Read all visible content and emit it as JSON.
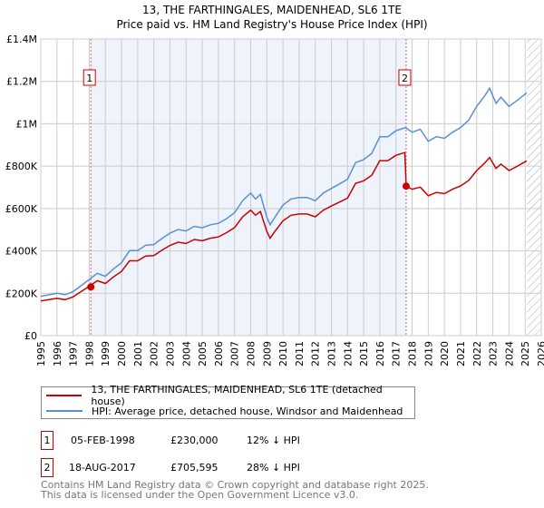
{
  "chart_data": {
    "type": "line",
    "title": "13, THE FARTHINGALES, MAIDENHEAD, SL6 1TE",
    "subtitle": "Price paid vs. HM Land Registry's House Price Index (HPI)",
    "xlabel": "",
    "ylabel": "",
    "xlim": [
      1995,
      2026
    ],
    "ylim": [
      0,
      1400000
    ],
    "x_ticks": [
      1995,
      1996,
      1997,
      1998,
      1999,
      2000,
      2001,
      2002,
      2003,
      2004,
      2005,
      2006,
      2007,
      2008,
      2009,
      2010,
      2011,
      2012,
      2013,
      2014,
      2015,
      2016,
      2017,
      2018,
      2019,
      2020,
      2021,
      2022,
      2023,
      2024,
      2025,
      2026
    ],
    "y_ticks": [
      {
        "v": 0,
        "label": "£0"
      },
      {
        "v": 200000,
        "label": "£200K"
      },
      {
        "v": 400000,
        "label": "£400K"
      },
      {
        "v": 600000,
        "label": "£600K"
      },
      {
        "v": 800000,
        "label": "£800K"
      },
      {
        "v": 1000000,
        "label": "£1M"
      },
      {
        "v": 1200000,
        "label": "£1.2M"
      },
      {
        "v": 1400000,
        "label": "£1.4M"
      }
    ],
    "grid": true,
    "shaded_period": [
      1998.1,
      2017.63
    ],
    "forecast_hatch_from": 2025.1,
    "series": [
      {
        "name": "13, THE FARTHINGALES, MAIDENHEAD, SL6 1TE (detached house)",
        "color": "#cc0000",
        "x": [
          1995,
          1996,
          1996.5,
          1997,
          1997.5,
          1998,
          1998.5,
          1999,
          1999.5,
          2000,
          2000.5,
          2001,
          2001.5,
          2002,
          2002.5,
          2003,
          2003.5,
          2004,
          2004.5,
          2005,
          2005.5,
          2006,
          2006.5,
          2007,
          2007.5,
          2008,
          2008.3,
          2008.6,
          2009,
          2009.2,
          2009.5,
          2010,
          2010.5,
          2011,
          2011.5,
          2012,
          2012.5,
          2013,
          2013.5,
          2014,
          2014.5,
          2015,
          2015.5,
          2016,
          2016.5,
          2017,
          2017.55,
          2017.63,
          2018,
          2018.5,
          2019,
          2019.5,
          2020,
          2020.5,
          2021,
          2021.5,
          2022,
          2022.5,
          2022.8,
          2023.2,
          2023.5,
          2024,
          2024.5,
          2025.1
        ],
        "y": [
          164,
          176,
          170,
          183,
          208,
          233,
          259,
          246,
          277,
          303,
          353,
          353,
          376,
          378,
          403,
          426,
          441,
          435,
          454,
          448,
          460,
          466,
          486,
          510,
          561,
          592,
          568,
          586,
          492,
          460,
          492,
          542,
          568,
          574,
          574,
          561,
          592,
          612,
          630,
          649,
          719,
          731,
          757,
          826,
          826,
          851,
          864,
          706,
          691,
          701,
          660,
          676,
          670,
          691,
          707,
          732,
          779,
          815,
          841,
          789,
          810,
          779,
          799,
          825
        ]
      },
      {
        "name": "HPI: Average price, detached house, Windsor and Maidenhead",
        "color": "#5b8fd4",
        "x": [
          1995,
          1996,
          1996.5,
          1997,
          1997.5,
          1998,
          1998.5,
          1999,
          1999.5,
          2000,
          2000.5,
          2001,
          2001.5,
          2002,
          2002.5,
          2003,
          2003.5,
          2004,
          2004.5,
          2005,
          2005.5,
          2006,
          2006.5,
          2007,
          2007.5,
          2008,
          2008.3,
          2008.6,
          2009,
          2009.2,
          2009.5,
          2010,
          2010.5,
          2011,
          2011.5,
          2012,
          2012.5,
          2013,
          2013.5,
          2014,
          2014.5,
          2015,
          2015.5,
          2016,
          2016.5,
          2017,
          2017.6,
          2018,
          2018.5,
          2019,
          2019.5,
          2020,
          2020.5,
          2021,
          2021.5,
          2022,
          2022.5,
          2022.8,
          2023.2,
          2023.5,
          2024,
          2024.5,
          2025.1
        ],
        "y": [
          186,
          200,
          193,
          208,
          236,
          265,
          294,
          280,
          315,
          344,
          401,
          401,
          427,
          430,
          458,
          484,
          501,
          494,
          516,
          509,
          523,
          530,
          552,
          580,
          637,
          673,
          645,
          666,
          559,
          523,
          559,
          616,
          645,
          652,
          652,
          637,
          673,
          695,
          716,
          738,
          817,
          831,
          860,
          939,
          939,
          967,
          982,
          960,
          974,
          917,
          939,
          931,
          960,
          982,
          1017,
          1082,
          1132,
          1168,
          1096,
          1125,
          1082,
          1110,
          1146
        ]
      }
    ],
    "y_units": "thousands GBP",
    "sales": [
      {
        "id": "1",
        "x": 1998.1,
        "y": 230,
        "date": "05-FEB-1998",
        "price": "£230,000",
        "hpi": "12% ↓ HPI"
      },
      {
        "id": "2",
        "x": 2017.63,
        "y": 705.595,
        "date": "18-AUG-2017",
        "price": "£705,595",
        "hpi": "28% ↓ HPI"
      }
    ]
  },
  "legend": {
    "red": "13, THE FARTHINGALES, MAIDENHEAD, SL6 1TE (detached house)",
    "blue": "HPI: Average price, detached house, Windsor and Maidenhead"
  },
  "footer": {
    "line1": "Contains HM Land Registry data © Crown copyright and database right 2025.",
    "line2": "This data is licensed under the Open Government Licence v3.0."
  }
}
